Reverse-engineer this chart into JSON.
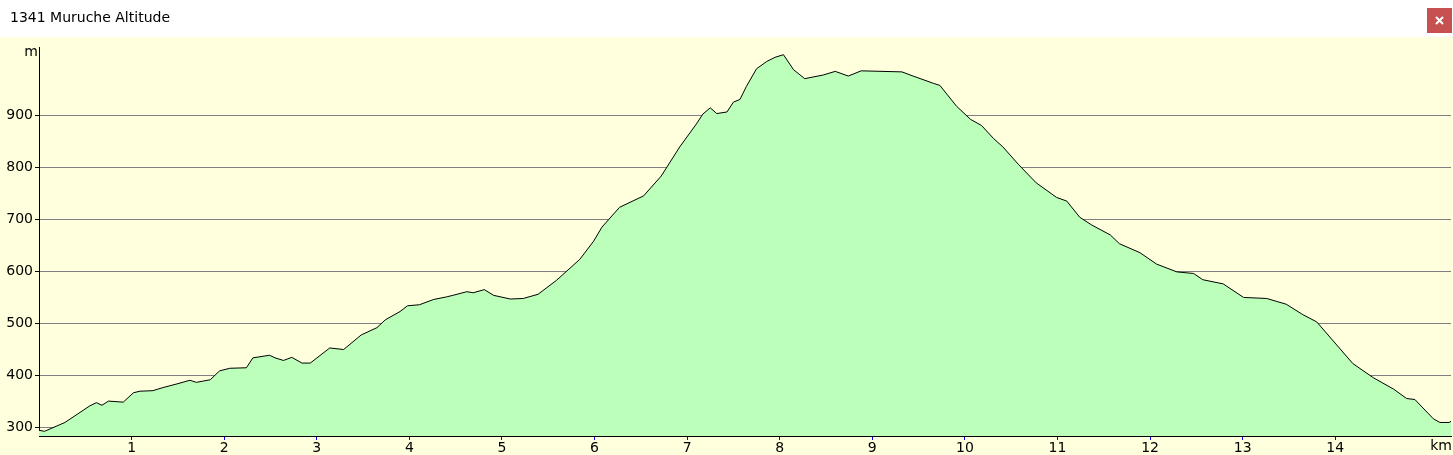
{
  "chart_data": {
    "type": "area",
    "title": "1341 Muruche Altitude",
    "xlabel": "km",
    "ylabel": "m",
    "x": [
      0,
      0.06,
      0.28,
      0.55,
      0.62,
      0.68,
      0.75,
      0.91,
      1.02,
      1.09,
      1.23,
      1.34,
      1.49,
      1.63,
      1.7,
      1.85,
      1.95,
      2.06,
      2.24,
      2.31,
      2.49,
      2.55,
      2.64,
      2.73,
      2.84,
      2.93,
      3.14,
      3.29,
      3.48,
      3.65,
      3.74,
      3.9,
      3.98,
      4.11,
      4.26,
      4.4,
      4.47,
      4.62,
      4.69,
      4.81,
      4.91,
      5.09,
      5.23,
      5.39,
      5.59,
      5.84,
      5.99,
      6.08,
      6.27,
      6.53,
      6.72,
      6.92,
      7.1,
      7.17,
      7.25,
      7.32,
      7.43,
      7.5,
      7.57,
      7.64,
      7.75,
      7.86,
      7.95,
      8.04,
      8.15,
      8.27,
      8.47,
      8.6,
      8.74,
      8.88,
      9.32,
      9.44,
      9.66,
      9.73,
      9.91,
      10.06,
      10.18,
      10.31,
      10.41,
      10.58,
      10.77,
      10.99,
      11.1,
      11.24,
      11.37,
      11.57,
      11.67,
      11.89,
      12.07,
      12.29,
      12.47,
      12.57,
      12.79,
      13.01,
      13.26,
      13.47,
      13.65,
      13.8,
      14.19,
      14.41,
      14.63,
      14.77,
      14.86,
      15.06,
      15.13,
      15.23,
      15.25
    ],
    "series": [
      {
        "color": "#bbffbb",
        "values": [
          295,
          293,
          310,
          342,
          348,
          343,
          351,
          349,
          367,
          370,
          371,
          377,
          384,
          391,
          387,
          392,
          409,
          414,
          415,
          434,
          439,
          434,
          429,
          435,
          424,
          424,
          453,
          450,
          478,
          492,
          507,
          523,
          534,
          536,
          546,
          551,
          554,
          561,
          559,
          565,
          554,
          547,
          548,
          556,
          583,
          623,
          658,
          685,
          723,
          745,
          783,
          839,
          883,
          902,
          914,
          903,
          906,
          925,
          930,
          955,
          989,
          1003,
          1011,
          1016,
          987,
          970,
          977,
          984,
          975,
          985,
          983,
          975,
          961,
          957,
          917,
          892,
          880,
          855,
          839,
          805,
          770,
          742,
          735,
          704,
          689,
          670,
          653,
          636,
          614,
          599,
          596,
          584,
          576,
          550,
          548,
          537,
          517,
          503,
          423,
          396,
          374,
          356,
          354,
          317,
          310,
          310,
          312
        ]
      }
    ],
    "xlim": [
      0,
      15.25
    ],
    "xticks": [
      1,
      2,
      3,
      4,
      5,
      6,
      7,
      8,
      9,
      10,
      11,
      12,
      13,
      14
    ],
    "ylim": [
      284,
      1030
    ],
    "yticks": [
      300,
      400,
      500,
      600,
      700,
      800,
      900
    ],
    "grid": "y",
    "marker": "none",
    "legend": false
  }
}
